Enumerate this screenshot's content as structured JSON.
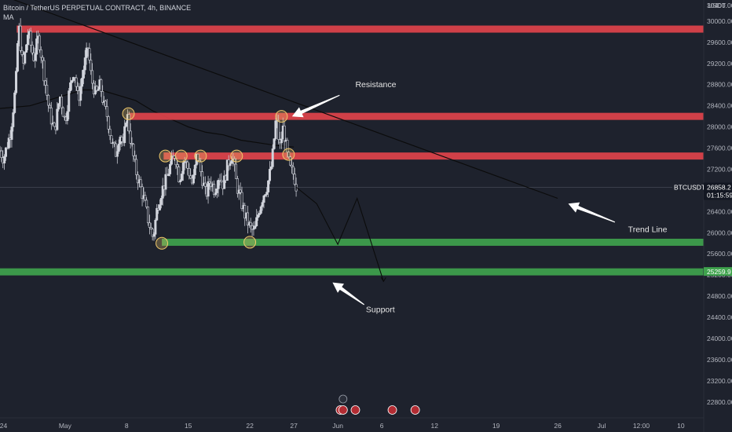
{
  "header": {
    "title": "Bitcoin / TetherUS PERPETUAL CONTRACT, 4h, BINANCE",
    "indicator": "MA"
  },
  "colors": {
    "background": "#1e222d",
    "resistance": "#e0434b",
    "support": "#3fa34d",
    "candle_up": "#d1d4dc",
    "candle_down": "#d1d4dc",
    "ma_line": "#0b0b0b",
    "trend_line": "#0b0b0b",
    "marker": "#f0c96a"
  },
  "chart_data": {
    "type": "candlestick",
    "symbol": "BTCUSDT.P",
    "timeframe": "4h",
    "y_unit": "USDT",
    "ylim": [
      22500,
      30400
    ],
    "y_ticks": [
      22800,
      23200,
      23600,
      24000,
      24400,
      24800,
      25200,
      25600,
      26000,
      26400,
      26800,
      27200,
      27600,
      28000,
      28400,
      28800,
      29200,
      29600,
      30000
    ],
    "y_tick_labels": [
      "22800.00",
      "23200.00",
      "23600.00",
      "24000.00",
      "24400.00",
      "24800.00",
      "25200.00",
      "25600.00",
      "26000.00",
      "26400.00",
      "26800.00",
      "27200.00",
      "27600.00",
      "28000.00",
      "28400.00",
      "28800.00",
      "29200.00",
      "29600.00",
      "30000.00"
    ],
    "x_ticks": [
      {
        "label": "24",
        "day": -7
      },
      {
        "label": "May",
        "day": 0
      },
      {
        "label": "8",
        "day": 7
      },
      {
        "label": "15",
        "day": 14
      },
      {
        "label": "22",
        "day": 21
      },
      {
        "label": "27",
        "day": 26
      },
      {
        "label": "Jun",
        "day": 31
      },
      {
        "label": "6",
        "day": 36
      },
      {
        "label": "12",
        "day": 42
      },
      {
        "label": "19",
        "day": 49
      },
      {
        "label": "26",
        "day": 56
      },
      {
        "label": "Jul",
        "day": 61
      },
      {
        "label": "12:00",
        "day": 65.5
      },
      {
        "label": "10",
        "day": 70
      }
    ],
    "xlim": [
      -7.4,
      72.6
    ],
    "last_price": 26858.2,
    "last_price_label": "26858.2",
    "countdown": "01:15:59",
    "support_price_label": "25259.9",
    "price_path": [
      [
        -7.4,
        27550
      ],
      [
        -7,
        27400
      ],
      [
        -6.2,
        27900
      ],
      [
        -5.6,
        28800
      ],
      [
        -5.3,
        29950
      ],
      [
        -4.8,
        29100
      ],
      [
        -4.2,
        29800
      ],
      [
        -3.6,
        29300
      ],
      [
        -3.0,
        29700
      ],
      [
        -2.4,
        29000
      ],
      [
        -1.8,
        28300
      ],
      [
        -1.2,
        27900
      ],
      [
        -0.6,
        28600
      ],
      [
        0.0,
        28100
      ],
      [
        0.5,
        28700
      ],
      [
        1.0,
        29100
      ],
      [
        1.5,
        28500
      ],
      [
        2.1,
        29100
      ],
      [
        2.6,
        29500
      ],
      [
        3.0,
        28900
      ],
      [
        3.5,
        28600
      ],
      [
        4.0,
        28800
      ],
      [
        4.4,
        28400
      ],
      [
        4.8,
        28200
      ],
      [
        5.3,
        27700
      ],
      [
        5.8,
        27500
      ],
      [
        6.2,
        27900
      ],
      [
        6.6,
        27600
      ],
      [
        7.0,
        28300
      ],
      [
        7.5,
        27700
      ],
      [
        8.0,
        27200
      ],
      [
        8.5,
        26900
      ],
      [
        9.0,
        26600
      ],
      [
        9.5,
        26200
      ],
      [
        10.0,
        25900
      ],
      [
        10.5,
        26500
      ],
      [
        11.0,
        26800
      ],
      [
        11.5,
        27000
      ],
      [
        12.0,
        27300
      ],
      [
        12.5,
        27500
      ],
      [
        13.0,
        27000
      ],
      [
        13.5,
        27400
      ],
      [
        14.0,
        27200
      ],
      [
        14.5,
        26900
      ],
      [
        15.0,
        27500
      ],
      [
        15.5,
        27100
      ],
      [
        16.0,
        26700
      ],
      [
        16.5,
        27000
      ],
      [
        17.0,
        26800
      ],
      [
        17.5,
        27100
      ],
      [
        18.0,
        26900
      ],
      [
        18.5,
        27300
      ],
      [
        19.0,
        27500
      ],
      [
        19.5,
        26900
      ],
      [
        20.0,
        26600
      ],
      [
        20.5,
        26300
      ],
      [
        21.0,
        26100
      ],
      [
        21.5,
        26000
      ],
      [
        22.0,
        26400
      ],
      [
        22.5,
        26700
      ],
      [
        23.0,
        26900
      ],
      [
        23.5,
        27300
      ],
      [
        24.0,
        28200
      ],
      [
        24.4,
        27600
      ],
      [
        24.8,
        28000
      ],
      [
        25.2,
        27500
      ],
      [
        25.6,
        27200
      ],
      [
        26.0,
        27100
      ],
      [
        26.3,
        26858
      ]
    ],
    "ma_path": [
      [
        -7.4,
        28350
      ],
      [
        -4,
        28400
      ],
      [
        -1,
        28550
      ],
      [
        2,
        28700
      ],
      [
        4,
        28700
      ],
      [
        6,
        28600
      ],
      [
        8,
        28500
      ],
      [
        10,
        28300
      ],
      [
        12,
        28150
      ],
      [
        14,
        28000
      ],
      [
        16,
        27900
      ],
      [
        18,
        27850
      ],
      [
        20,
        27750
      ],
      [
        22,
        27700
      ],
      [
        24,
        27650
      ],
      [
        26,
        27620
      ]
    ],
    "resistance_levels": [
      29850,
      28200,
      27450
    ],
    "support_levels": [
      25820,
      25260
    ],
    "trend_line": [
      [
        -7.4,
        30500
      ],
      [
        56,
        26650
      ]
    ],
    "projection": [
      [
        26.3,
        26858
      ],
      [
        28.6,
        26550
      ],
      [
        31.0,
        25780
      ],
      [
        33.2,
        26650
      ],
      [
        36.2,
        25080
      ]
    ],
    "markers": [
      {
        "day": 7.2,
        "price": 28250
      },
      {
        "day": 11.4,
        "price": 27450
      },
      {
        "day": 13.2,
        "price": 27450
      },
      {
        "day": 15.4,
        "price": 27450
      },
      {
        "day": 19.5,
        "price": 27450
      },
      {
        "day": 11.0,
        "price": 25800
      },
      {
        "day": 21.0,
        "price": 25820
      },
      {
        "day": 24.6,
        "price": 28200
      },
      {
        "day": 25.4,
        "price": 27480
      }
    ],
    "annotations": [
      {
        "text": "Resistance",
        "arrow_from": [
          31.2,
          28600
        ],
        "arrow_to": [
          25.8,
          28200
        ],
        "label_at": [
          33.0,
          28750
        ]
      },
      {
        "text": "Trend Line",
        "arrow_from": [
          62.5,
          26200
        ],
        "arrow_to": [
          57.2,
          26550
        ],
        "label_at": [
          64.0,
          26010
        ]
      },
      {
        "text": "Support",
        "arrow_from": [
          34.0,
          24640
        ],
        "arrow_to": [
          30.4,
          25060
        ],
        "label_at": [
          34.2,
          24500
        ]
      }
    ]
  }
}
